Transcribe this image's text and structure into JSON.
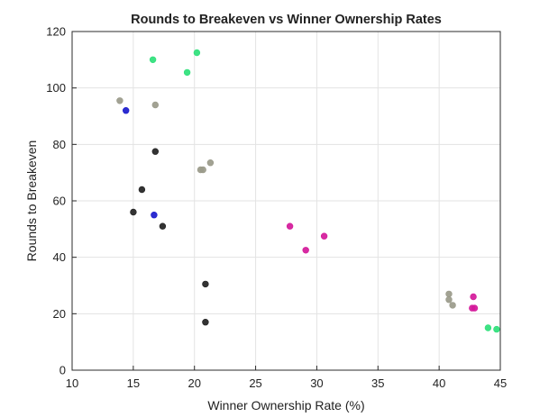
{
  "chart_data": {
    "type": "scatter",
    "title": "Rounds to Breakeven vs Winner Ownership Rates",
    "xlabel": "Winner Ownership Rate (%)",
    "ylabel": "Rounds to Breakeven",
    "xlim": [
      10,
      45
    ],
    "ylim": [
      0,
      120
    ],
    "xticks": [
      10,
      15,
      20,
      25,
      30,
      35,
      40,
      45
    ],
    "yticks": [
      0,
      20,
      40,
      60,
      80,
      100,
      120
    ],
    "grid": true,
    "legend": "none",
    "series": [
      {
        "color": "#2ee07a",
        "points": [
          [
            16.6,
            110
          ],
          [
            20.2,
            112.5
          ],
          [
            19.4,
            105.5
          ],
          [
            44.0,
            15
          ],
          [
            44.7,
            14.5
          ]
        ]
      },
      {
        "color": "#9a9a8a",
        "points": [
          [
            13.9,
            95.5
          ],
          [
            16.8,
            94
          ],
          [
            20.5,
            71
          ],
          [
            20.7,
            71
          ],
          [
            21.3,
            73.5
          ],
          [
            40.8,
            27
          ],
          [
            40.8,
            25
          ],
          [
            41.1,
            23
          ]
        ]
      },
      {
        "color": "#1a1acc",
        "points": [
          [
            14.4,
            92
          ],
          [
            16.7,
            55
          ]
        ]
      },
      {
        "color": "#222222",
        "points": [
          [
            16.8,
            77.5
          ],
          [
            15.7,
            64
          ],
          [
            15.0,
            56
          ],
          [
            17.4,
            51
          ],
          [
            20.9,
            30.5
          ],
          [
            20.9,
            17
          ]
        ]
      },
      {
        "color": "#d4199a",
        "points": [
          [
            27.8,
            51
          ],
          [
            29.1,
            42.5
          ],
          [
            30.6,
            47.5
          ],
          [
            42.8,
            26
          ],
          [
            42.7,
            22
          ],
          [
            42.9,
            22
          ]
        ]
      }
    ]
  }
}
